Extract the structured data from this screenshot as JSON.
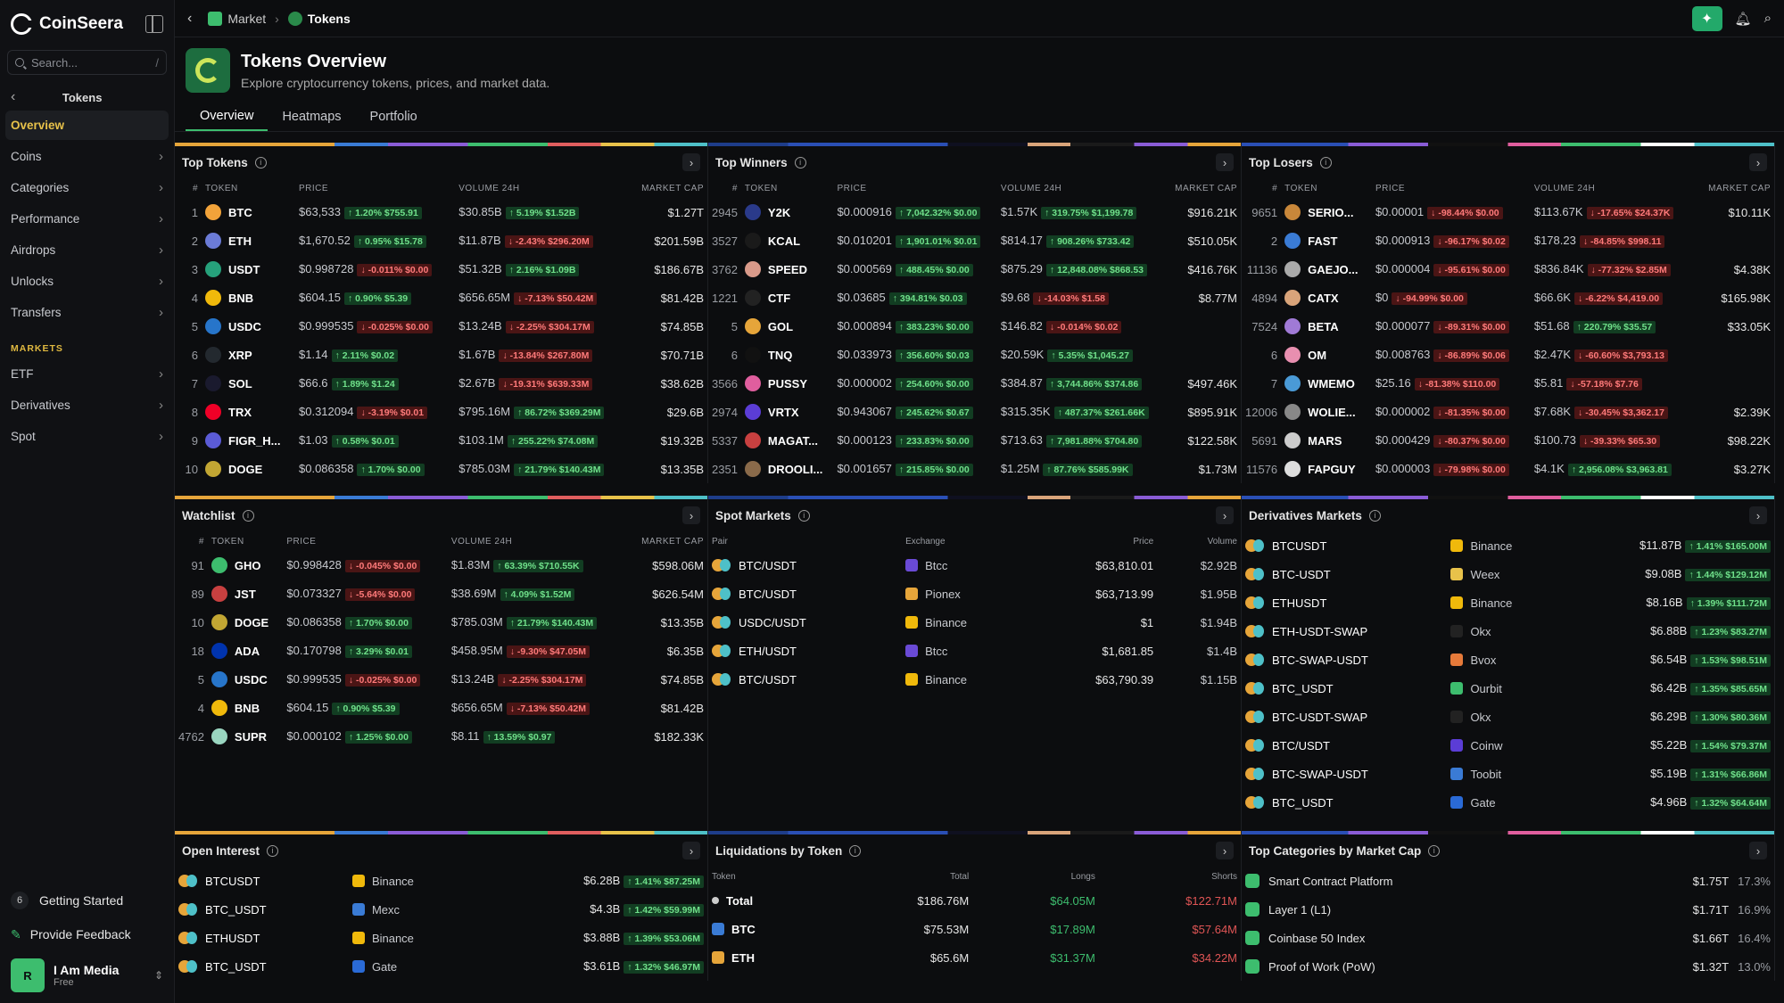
{
  "app": {
    "name": "CoinSeera"
  },
  "sidebar": {
    "search_placeholder": "Search...",
    "search_shortcut": "/",
    "section": "Tokens",
    "items": [
      {
        "label": "Overview",
        "active": true
      },
      {
        "label": "Coins"
      },
      {
        "label": "Categories"
      },
      {
        "label": "Performance"
      },
      {
        "label": "Airdrops"
      },
      {
        "label": "Unlocks"
      },
      {
        "label": "Transfers"
      }
    ],
    "markets_label": "MARKETS",
    "market_items": [
      {
        "label": "ETF"
      },
      {
        "label": "Derivatives"
      },
      {
        "label": "Spot"
      }
    ],
    "getting_started": {
      "count": "6",
      "label": "Getting Started"
    },
    "feedback": "Provide Feedback",
    "user": {
      "name": "I Am Media",
      "plan": "Free",
      "initial": "R"
    }
  },
  "breadcrumb": [
    {
      "label": "Market"
    },
    {
      "label": "Tokens"
    }
  ],
  "header": {
    "title": "Tokens Overview",
    "subtitle": "Explore cryptocurrency tokens, prices, and market data."
  },
  "tabs": [
    {
      "label": "Overview",
      "active": true
    },
    {
      "label": "Heatmaps"
    },
    {
      "label": "Portfolio"
    }
  ],
  "top_tokens": {
    "title": "Top Tokens",
    "cols": [
      "#",
      "TOKEN",
      "PRICE",
      "VOLUME 24H",
      "MARKET CAP"
    ],
    "rows": [
      [
        "1",
        "BTC",
        "$63,533",
        "↑ 1.20% $755.91",
        "up",
        "$30.85B",
        "↑ 5.19% $1.52B",
        "up",
        "$1.27T",
        "#f2a33a"
      ],
      [
        "2",
        "ETH",
        "$1,670.52",
        "↑ 0.95% $15.78",
        "up",
        "$11.87B",
        "↓ -2.43% $296.20M",
        "dn",
        "$201.59B",
        "#6b7bd6"
      ],
      [
        "3",
        "USDT",
        "$0.998728",
        "↓ -0.011% $0.00",
        "dn",
        "$51.32B",
        "↑ 2.16% $1.09B",
        "up",
        "$186.67B",
        "#26a17b"
      ],
      [
        "4",
        "BNB",
        "$604.15",
        "↑ 0.90% $5.39",
        "up",
        "$656.65M",
        "↓ -7.13% $50.42M",
        "dn",
        "$81.42B",
        "#f0b90b"
      ],
      [
        "5",
        "USDC",
        "$0.999535",
        "↓ -0.025% $0.00",
        "dn",
        "$13.24B",
        "↓ -2.25% $304.17M",
        "dn",
        "$74.85B",
        "#2775ca"
      ],
      [
        "6",
        "XRP",
        "$1.14",
        "↑ 2.11% $0.02",
        "up",
        "$1.67B",
        "↓ -13.84% $267.80M",
        "dn",
        "$70.71B",
        "#23292f"
      ],
      [
        "7",
        "SOL",
        "$66.6",
        "↑ 1.89% $1.24",
        "up",
        "$2.67B",
        "↓ -19.31% $639.33M",
        "dn",
        "$38.62B",
        "#1a1a2e"
      ],
      [
        "8",
        "TRX",
        "$0.312094",
        "↓ -3.19% $0.01",
        "dn",
        "$795.16M",
        "↑ 86.72% $369.29M",
        "up",
        "$29.6B",
        "#ef0027"
      ],
      [
        "9",
        "FIGR_H...",
        "$1.03",
        "↑ 0.58% $0.01",
        "up",
        "$103.1M",
        "↑ 255.22% $74.08M",
        "up",
        "$19.32B",
        "#5b5bd6"
      ],
      [
        "10",
        "DOGE",
        "$0.086358",
        "↑ 1.70% $0.00",
        "up",
        "$785.03M",
        "↑ 21.79% $140.43M",
        "up",
        "$13.35B",
        "#c2a633"
      ]
    ]
  },
  "top_winners": {
    "title": "Top Winners",
    "cols": [
      "#",
      "TOKEN",
      "PRICE",
      "VOLUME 24H",
      "MARKET CAP"
    ],
    "rows": [
      [
        "2945",
        "Y2K",
        "$0.000916",
        "↑ 7,042.32% $0.00",
        "up",
        "$1.57K",
        "↑ 319.75% $1,199.78",
        "up",
        "$916.21K",
        "#2a3a8a"
      ],
      [
        "3527",
        "KCAL",
        "$0.010201",
        "↑ 1,901.01% $0.01",
        "up",
        "$814.17",
        "↑ 908.26% $733.42",
        "up",
        "$510.05K",
        "#1a1a1a"
      ],
      [
        "3762",
        "SPEED",
        "$0.000569",
        "↑ 488.45% $0.00",
        "up",
        "$875.29",
        "↑ 12,848.08% $868.53",
        "up",
        "$416.76K",
        "#d99a8a"
      ],
      [
        "1221",
        "CTF",
        "$0.03685",
        "↑ 394.81% $0.03",
        "up",
        "$9.68",
        "↓ -14.03% $1.58",
        "dn",
        "$8.77M",
        "#222"
      ],
      [
        "5",
        "GOL",
        "$0.000894",
        "↑ 383.23% $0.00",
        "up",
        "$146.82",
        "↓ -0.014% $0.02",
        "dn",
        "",
        "#e6a53a"
      ],
      [
        "6",
        "TNQ",
        "$0.033973",
        "↑ 356.60% $0.03",
        "up",
        "$20.59K",
        "↑ 5.35% $1,045.27",
        "up",
        "",
        "#111"
      ],
      [
        "3566",
        "PUSSY",
        "$0.000002",
        "↑ 254.60% $0.00",
        "up",
        "$384.87",
        "↑ 3,744.86% $374.86",
        "up",
        "$497.46K",
        "#e05e9e"
      ],
      [
        "2974",
        "VRTX",
        "$0.943067",
        "↑ 245.62% $0.67",
        "up",
        "$315.35K",
        "↑ 487.37% $261.66K",
        "up",
        "$895.91K",
        "#5b3dd6"
      ],
      [
        "5337",
        "MAGAT...",
        "$0.000123",
        "↑ 233.83% $0.00",
        "up",
        "$713.63",
        "↑ 7,981.88% $704.80",
        "up",
        "$122.58K",
        "#c84040"
      ],
      [
        "2351",
        "DROOLI...",
        "$0.001657",
        "↑ 215.85% $0.00",
        "up",
        "$1.25M",
        "↑ 87.76% $585.99K",
        "up",
        "$1.73M",
        "#8a6a4a"
      ]
    ]
  },
  "top_losers": {
    "title": "Top Losers",
    "cols": [
      "#",
      "TOKEN",
      "PRICE",
      "VOLUME 24H",
      "MARKET CAP"
    ],
    "rows": [
      [
        "9651",
        "SERIO...",
        "$0.00001",
        "↓ -98.44% $0.00",
        "dn",
        "$113.67K",
        "↓ -17.65% $24.37K",
        "dn",
        "$10.11K",
        "#c8873a"
      ],
      [
        "2",
        "FAST",
        "$0.000913",
        "↓ -96.17% $0.02",
        "dn",
        "$178.23",
        "↓ -84.85% $998.11",
        "dn",
        "",
        "#3a7bd5"
      ],
      [
        "11136",
        "GAEJO...",
        "$0.000004",
        "↓ -95.61% $0.00",
        "dn",
        "$836.84K",
        "↓ -77.32% $2.85M",
        "dn",
        "$4.38K",
        "#aaa"
      ],
      [
        "4894",
        "CATX",
        "$0",
        "↓ -94.99% $0.00",
        "dn",
        "$66.6K",
        "↓ -6.22% $4,419.00",
        "dn",
        "$165.98K",
        "#d9a47a"
      ],
      [
        "7524",
        "BETA",
        "$0.000077",
        "↓ -89.31% $0.00",
        "dn",
        "$51.68",
        "↑ 220.79% $35.57",
        "up",
        "$33.05K",
        "#a07ad6"
      ],
      [
        "6",
        "OM",
        "$0.008763",
        "↓ -86.89% $0.06",
        "dn",
        "$2.47K",
        "↓ -60.60% $3,793.13",
        "dn",
        "",
        "#e88fb0"
      ],
      [
        "7",
        "WMEMO",
        "$25.16",
        "↓ -81.38% $110.00",
        "dn",
        "$5.81",
        "↓ -57.18% $7.76",
        "dn",
        "",
        "#4a9ad6"
      ],
      [
        "12006",
        "WOLIE...",
        "$0.000002",
        "↓ -81.35% $0.00",
        "dn",
        "$7.68K",
        "↓ -30.45% $3,362.17",
        "dn",
        "$2.39K",
        "#888"
      ],
      [
        "5691",
        "MARS",
        "$0.000429",
        "↓ -80.37% $0.00",
        "dn",
        "$100.73",
        "↓ -39.33% $65.30",
        "dn",
        "$98.22K",
        "#ccc"
      ],
      [
        "11576",
        "FAPGUY",
        "$0.000003",
        "↓ -79.98% $0.00",
        "dn",
        "$4.1K",
        "↑ 2,956.08% $3,963.81",
        "up",
        "$3.27K",
        "#ddd"
      ]
    ]
  },
  "watchlist": {
    "title": "Watchlist",
    "cols": [
      "#",
      "TOKEN",
      "PRICE",
      "VOLUME 24H",
      "MARKET CAP"
    ],
    "rows": [
      [
        "91",
        "GHO",
        "$0.998428",
        "↓ -0.045% $0.00",
        "dn",
        "$1.83M",
        "↑ 63.39% $710.55K",
        "up",
        "$598.06M",
        "#3dbd6e"
      ],
      [
        "89",
        "JST",
        "$0.073327",
        "↓ -5.64% $0.00",
        "dn",
        "$38.69M",
        "↑ 4.09% $1.52M",
        "up",
        "$626.54M",
        "#c84040"
      ],
      [
        "10",
        "DOGE",
        "$0.086358",
        "↑ 1.70% $0.00",
        "up",
        "$785.03M",
        "↑ 21.79% $140.43M",
        "up",
        "$13.35B",
        "#c2a633"
      ],
      [
        "18",
        "ADA",
        "$0.170798",
        "↑ 3.29% $0.01",
        "up",
        "$458.95M",
        "↓ -9.30% $47.05M",
        "dn",
        "$6.35B",
        "#0033ad"
      ],
      [
        "5",
        "USDC",
        "$0.999535",
        "↓ -0.025% $0.00",
        "dn",
        "$13.24B",
        "↓ -2.25% $304.17M",
        "dn",
        "$74.85B",
        "#2775ca"
      ],
      [
        "4",
        "BNB",
        "$604.15",
        "↑ 0.90% $5.39",
        "up",
        "$656.65M",
        "↓ -7.13% $50.42M",
        "dn",
        "$81.42B",
        "#f0b90b"
      ],
      [
        "4762",
        "SUPR",
        "$0.000102",
        "↑ 1.25% $0.00",
        "up",
        "$8.11",
        "↑ 13.59% $0.97",
        "up",
        "$182.33K",
        "#9ad6c0"
      ]
    ]
  },
  "spot_markets": {
    "title": "Spot Markets",
    "cols": [
      "Pair",
      "Exchange",
      "Price",
      "Volume"
    ],
    "rows": [
      [
        "BTC/USDT",
        "Btcc",
        "$63,810.01",
        "$2.92B",
        "#6a4ad6"
      ],
      [
        "BTC/USDT",
        "Pionex",
        "$63,713.99",
        "$1.95B",
        "#e6a53a"
      ],
      [
        "USDC/USDT",
        "Binance",
        "$1",
        "$1.94B",
        "#f0b90b"
      ],
      [
        "ETH/USDT",
        "Btcc",
        "$1,681.85",
        "$1.4B",
        "#6a4ad6"
      ],
      [
        "BTC/USDT",
        "Binance",
        "$63,790.39",
        "$1.15B",
        "#f0b90b"
      ]
    ]
  },
  "derivatives": {
    "title": "Derivatives Markets",
    "rows": [
      [
        "BTCUSDT",
        "Binance",
        "$11.87B",
        "↑ 1.41% $165.00M",
        "#f0b90b"
      ],
      [
        "BTC-USDT",
        "Weex",
        "$9.08B",
        "↑ 1.44% $129.12M",
        "#e8c24a"
      ],
      [
        "ETHUSDT",
        "Binance",
        "$8.16B",
        "↑ 1.39% $111.72M",
        "#f0b90b"
      ],
      [
        "ETH-USDT-SWAP",
        "Okx",
        "$6.88B",
        "↑ 1.23% $83.27M",
        "#222"
      ],
      [
        "BTC-SWAP-USDT",
        "Bvox",
        "$6.54B",
        "↑ 1.53% $98.51M",
        "#e67a3a"
      ],
      [
        "BTC_USDT",
        "Ourbit",
        "$6.42B",
        "↑ 1.35% $85.65M",
        "#3dbd6e"
      ],
      [
        "BTC-USDT-SWAP",
        "Okx",
        "$6.29B",
        "↑ 1.30% $80.36M",
        "#222"
      ],
      [
        "BTC/USDT",
        "Coinw",
        "$5.22B",
        "↑ 1.54% $79.37M",
        "#5b3dd6"
      ],
      [
        "BTC-SWAP-USDT",
        "Toobit",
        "$5.19B",
        "↑ 1.31% $66.86M",
        "#3a7bd5"
      ],
      [
        "BTC_USDT",
        "Gate",
        "$4.96B",
        "↑ 1.32% $64.64M",
        "#2a6ad6"
      ]
    ]
  },
  "open_interest": {
    "title": "Open Interest",
    "rows": [
      [
        "BTCUSDT",
        "Binance",
        "$6.28B",
        "↑ 1.41% $87.25M",
        "#f0b90b"
      ],
      [
        "BTC_USDT",
        "Mexc",
        "$4.3B",
        "↑ 1.42% $59.99M",
        "#3a7bd5"
      ],
      [
        "ETHUSDT",
        "Binance",
        "$3.88B",
        "↑ 1.39% $53.06M",
        "#f0b90b"
      ],
      [
        "BTC_USDT",
        "Gate",
        "$3.61B",
        "↑ 1.32% $46.97M",
        "#2a6ad6"
      ]
    ]
  },
  "liquidations": {
    "title": "Liquidations by Token",
    "cols": [
      "Token",
      "Total",
      "Longs",
      "Shorts"
    ],
    "rows": [
      [
        "Total",
        "$186.76M",
        "$64.05M",
        "$122.71M",
        "#ccc"
      ],
      [
        "BTC",
        "$75.53M",
        "$17.89M",
        "$57.64M",
        "#3a7bd5"
      ],
      [
        "ETH",
        "$65.6M",
        "$31.37M",
        "$34.22M",
        "#e6a53a"
      ]
    ]
  },
  "top_categories": {
    "title": "Top Categories by Market Cap",
    "rows": [
      [
        "Smart Contract Platform",
        "$1.75T",
        "17.3%"
      ],
      [
        "Layer 1 (L1)",
        "$1.71T",
        "16.9%"
      ],
      [
        "Coinbase 50 Index",
        "$1.66T",
        "16.4%"
      ],
      [
        "Proof of Work (PoW)",
        "$1.32T",
        "13.0%"
      ]
    ]
  }
}
